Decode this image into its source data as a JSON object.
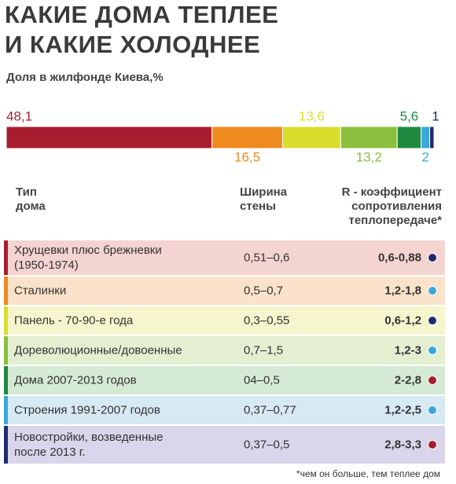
{
  "chart_data": {
    "type": "stacked-bar",
    "title": "КАКИЕ ДОМА ТЕПЛЕЕ\nИ КАКИЕ ХОЛОДНЕЕ",
    "subtitle": "Доля в жилфонде Киева,%",
    "values": [
      48.1,
      16.5,
      13.6,
      13.2,
      5.6,
      2,
      1
    ],
    "value_labels": [
      "48,1",
      "16,5",
      "13,6",
      "13,2",
      "5,6",
      "2",
      "1"
    ],
    "colors": [
      "#a81e30",
      "#ef8a1f",
      "#d9de2c",
      "#8cbf3d",
      "#1f8a40",
      "#3aa7dc",
      "#1f2b6f"
    ]
  },
  "table": {
    "header": [
      "Тип\nдома",
      "Ширина\nстены",
      "R - коэффициент\nсопротивления\nтеплопередаче*"
    ],
    "rows": [
      [
        "Хрущевки плюс брежневки\n(1950-1974)",
        "0,51–0,6",
        "0,6-0,88"
      ],
      [
        "Сталинки",
        "0,5–0,7",
        "1,2-1,8"
      ],
      [
        "Панель - 70-90-е года",
        "0,3–0,55",
        "0,6-1,2"
      ],
      [
        "Дореволюционные/довоенные",
        "0,7–1,5",
        "1,2-3"
      ],
      [
        "Дома 2007-2013 годов",
        "04–0,5",
        "2-2,8"
      ],
      [
        "Строения 1991-2007 годов",
        "0,37–0,77",
        "1,2-2,5"
      ],
      [
        "Новостройки, возведенные\nпосле 2013 г.",
        "0,37–0,5",
        "2,8-3,3"
      ]
    ],
    "footnote": "*чем он больше, тем теплее дом"
  }
}
